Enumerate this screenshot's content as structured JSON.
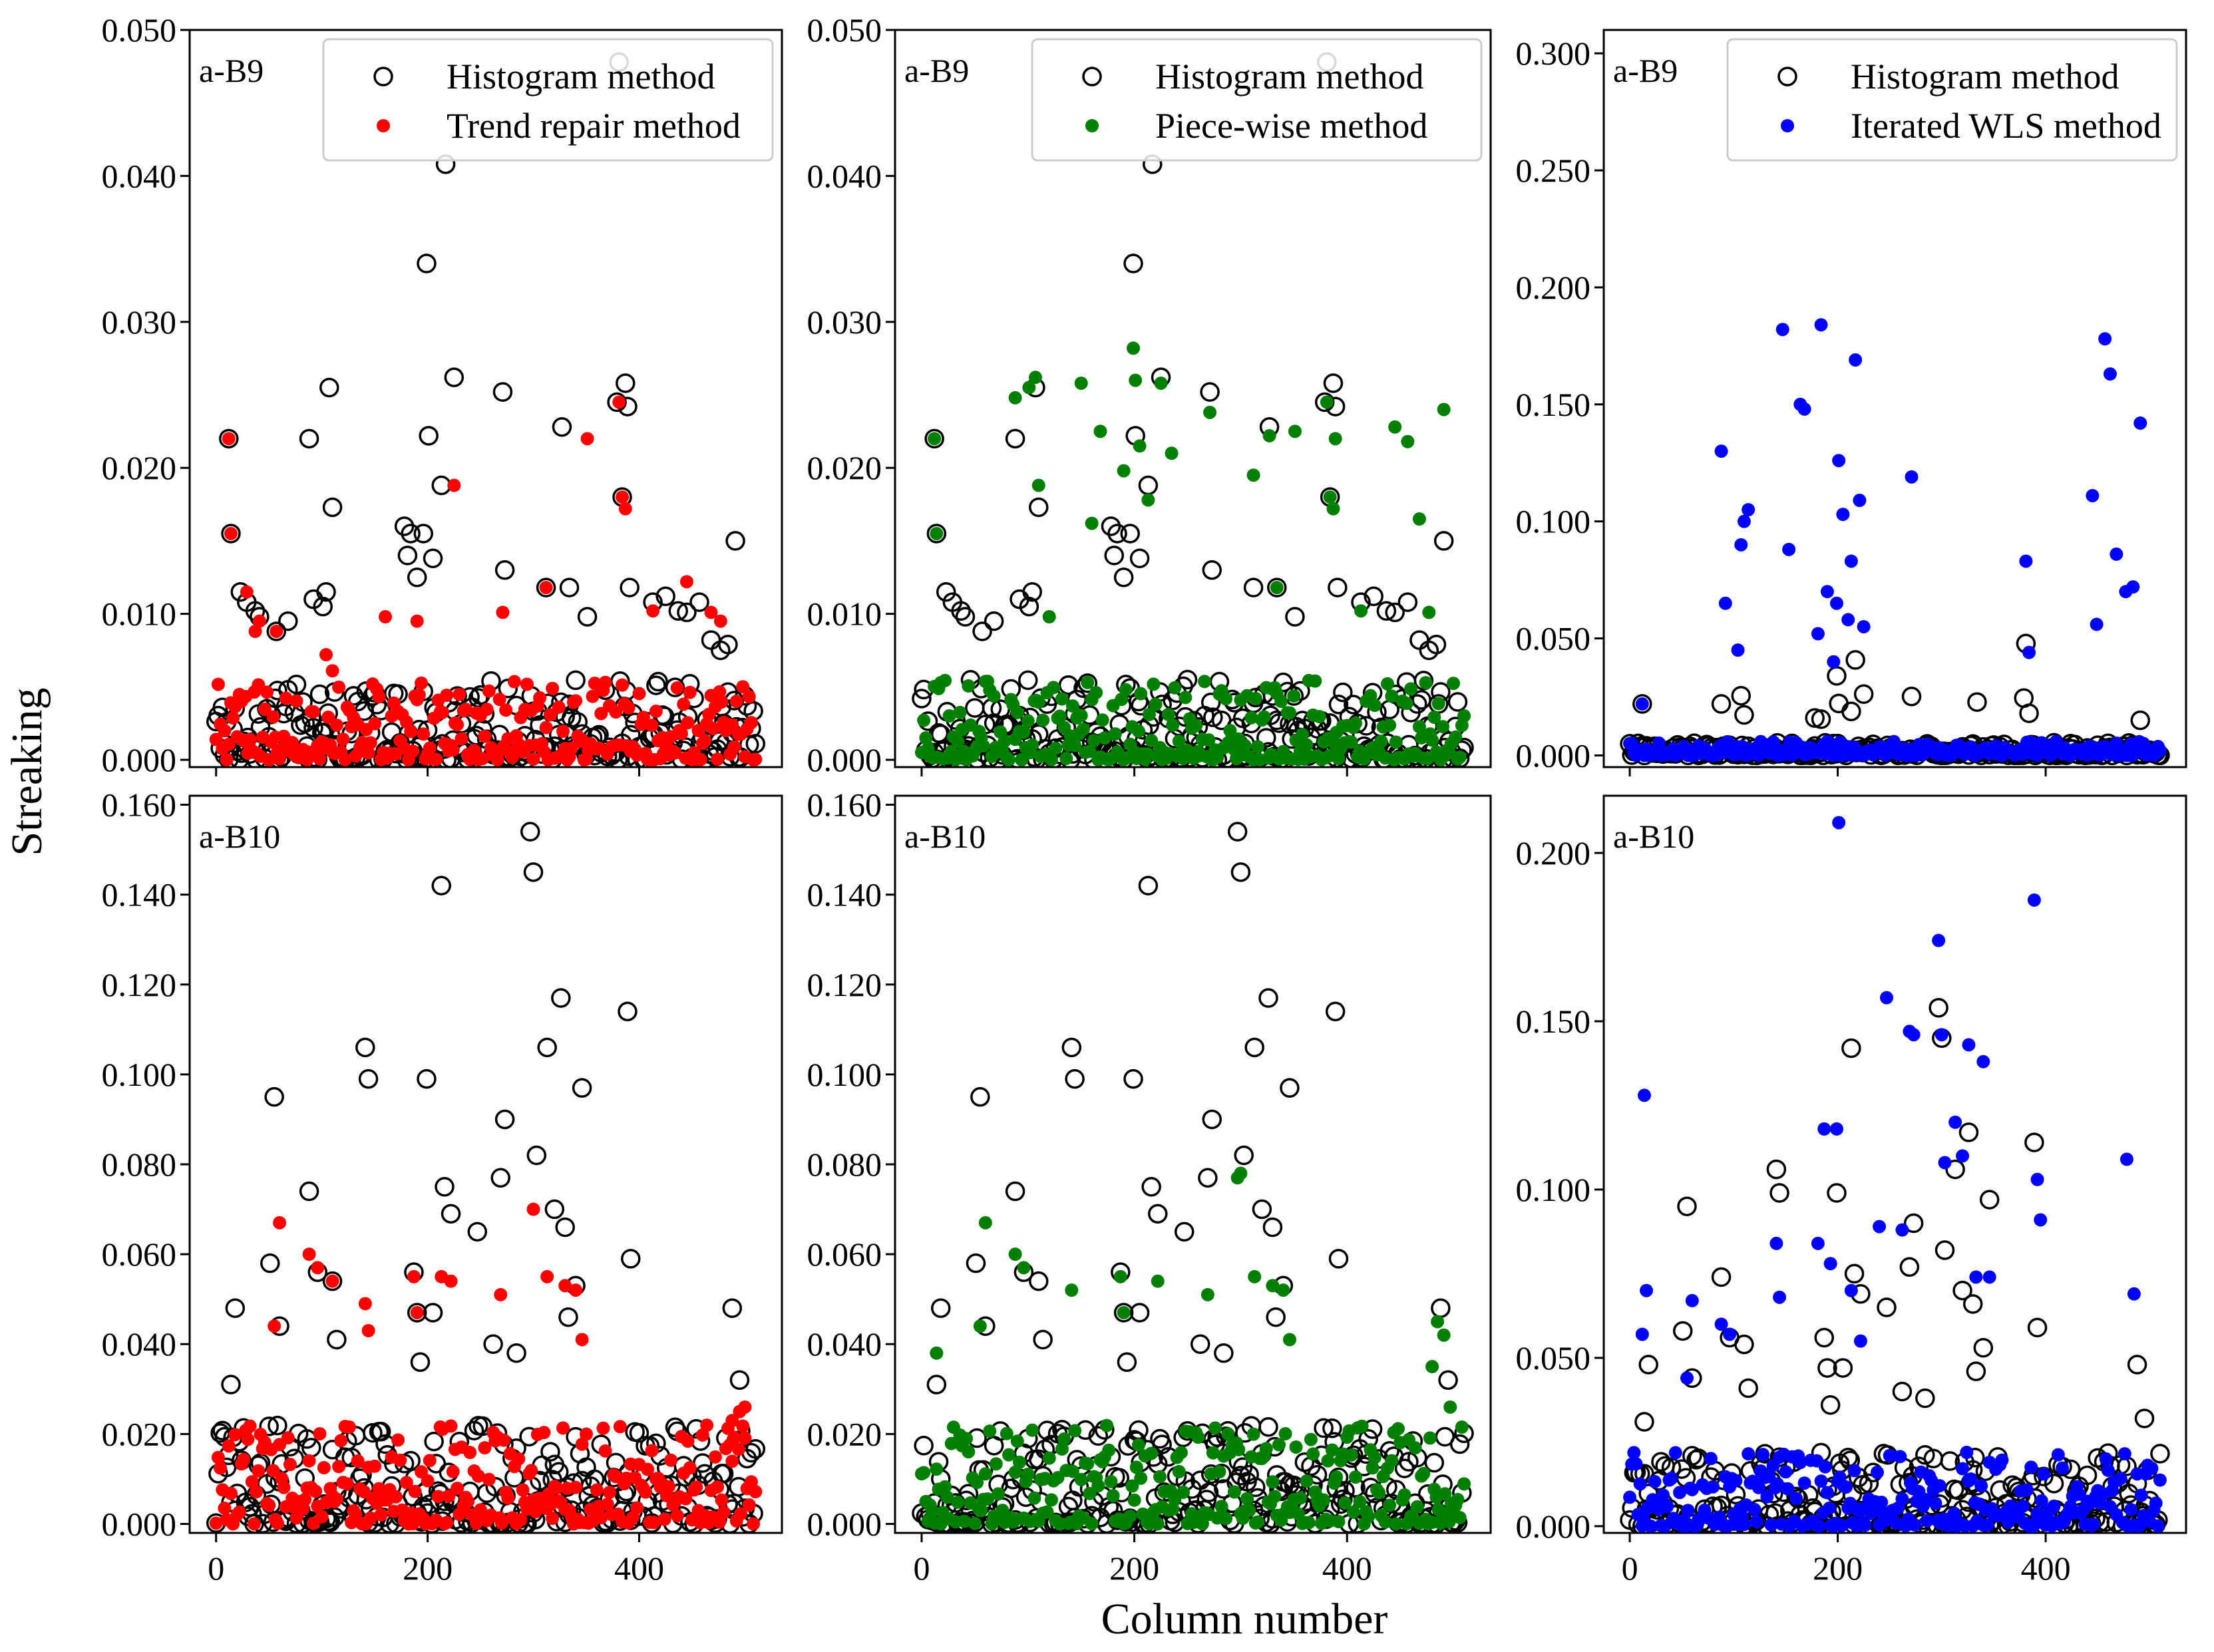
{
  "figure": {
    "ylabel": "Streaking",
    "xlabel": "Column number",
    "colors": {
      "histogram_edge": "#000000",
      "trend_repair": "#ff0000",
      "piece_wise": "#008000",
      "iterated_wls": "#0000ff"
    }
  },
  "chart_data": [
    {
      "id": "r0c0",
      "type": "scatter",
      "panel_label": "a-B9",
      "xlim": [
        -25,
        535
      ],
      "ylim": [
        -0.0005,
        0.05
      ],
      "xticks": [
        0,
        200,
        400
      ],
      "xtick_labels": [
        "",
        "",
        ""
      ],
      "yticks": [
        0,
        0.01,
        0.02,
        0.03,
        0.04,
        0.05
      ],
      "ytick_labels": [
        "0.000",
        "0.010",
        "0.020",
        "0.030",
        "0.040",
        "0.050"
      ],
      "legend": [
        "Histogram method",
        "Trend repair method"
      ],
      "legend_position": "upper-right",
      "base": {
        "name": "Histogram method",
        "scale": 0.01,
        "cluster_max": 0.0055,
        "extra_x": [
          12,
          14,
          23,
          29,
          37,
          41,
          57,
          68,
          88,
          92,
          101,
          104,
          107,
          110,
          178,
          181,
          184,
          190,
          196,
          199,
          201,
          205,
          213,
          217,
          225,
          271,
          273,
          312,
          327,
          334,
          351,
          379,
          381,
          384,
          387,
          389,
          391,
          413,
          425,
          437,
          445,
          457,
          468,
          477,
          484,
          491
        ],
        "extra_y": [
          0.022,
          0.0155,
          0.0115,
          0.0108,
          0.0102,
          0.0098,
          0.0088,
          0.0095,
          0.022,
          0.011,
          0.0105,
          0.0115,
          0.0255,
          0.0173,
          0.016,
          0.014,
          0.0155,
          0.0125,
          0.0155,
          0.034,
          0.0222,
          0.0138,
          0.0188,
          0.0408,
          0.0262,
          0.0252,
          0.013,
          0.0118,
          0.0228,
          0.0118,
          0.0098,
          0.0245,
          0.0478,
          0.018,
          0.0258,
          0.0242,
          0.0118,
          0.0108,
          0.0112,
          0.0102,
          0.0101,
          0.0108,
          0.0082,
          0.0075,
          0.0079,
          0.015
        ]
      },
      "method": {
        "name": "Trend repair method",
        "scale": 1.0,
        "cluster_max": 0.0055,
        "extra_x": [
          12,
          14,
          29,
          37,
          41,
          57,
          104,
          110,
          160,
          190,
          225,
          271,
          312,
          351,
          381,
          384,
          387,
          413,
          445,
          468,
          477
        ],
        "extra_y": [
          0.022,
          0.0155,
          0.0115,
          0.0088,
          0.0095,
          0.0088,
          0.0072,
          0.0061,
          0.0098,
          0.0095,
          0.0188,
          0.0101,
          0.0118,
          0.022,
          0.0245,
          0.018,
          0.0172,
          0.0102,
          0.0122,
          0.0101,
          0.0095
        ]
      }
    },
    {
      "id": "r0c1",
      "type": "scatter",
      "panel_label": "a-B9",
      "xlim": [
        -25,
        535
      ],
      "ylim": [
        -0.0005,
        0.05
      ],
      "xticks": [
        0,
        200,
        400
      ],
      "xtick_labels": [
        "",
        "",
        ""
      ],
      "yticks": [
        0,
        0.01,
        0.02,
        0.03,
        0.04,
        0.05
      ],
      "ytick_labels": [
        "0.000",
        "0.010",
        "0.020",
        "0.030",
        "0.040",
        "0.050"
      ],
      "legend": [
        "Histogram method",
        "Piece-wise method"
      ],
      "legend_position": "upper-right",
      "base": {
        "name": "Histogram method",
        "scale": 0.01,
        "cluster_max": 0.0055,
        "extra_x": [
          12,
          14,
          23,
          29,
          37,
          41,
          57,
          68,
          88,
          92,
          101,
          104,
          107,
          110,
          178,
          181,
          184,
          190,
          196,
          199,
          201,
          205,
          213,
          217,
          225,
          271,
          273,
          312,
          327,
          334,
          351,
          379,
          381,
          384,
          387,
          389,
          391,
          413,
          425,
          437,
          445,
          457,
          468,
          477,
          484,
          491
        ],
        "extra_y": [
          0.022,
          0.0155,
          0.0115,
          0.0108,
          0.0102,
          0.0098,
          0.0088,
          0.0095,
          0.022,
          0.011,
          0.0105,
          0.0115,
          0.0255,
          0.0173,
          0.016,
          0.014,
          0.0155,
          0.0125,
          0.0155,
          0.034,
          0.0222,
          0.0138,
          0.0188,
          0.0408,
          0.0262,
          0.0252,
          0.013,
          0.0118,
          0.0228,
          0.0118,
          0.0098,
          0.0245,
          0.0478,
          0.018,
          0.0258,
          0.0242,
          0.0118,
          0.0108,
          0.0112,
          0.0102,
          0.0101,
          0.0108,
          0.0082,
          0.0075,
          0.0079,
          0.015
        ]
      },
      "method": {
        "name": "Piece-wise method",
        "scale": 1.0,
        "cluster_max": 0.0055,
        "extra_x": [
          12,
          14,
          88,
          101,
          107,
          110,
          120,
          150,
          160,
          168,
          190,
          199,
          201,
          205,
          213,
          225,
          235,
          271,
          312,
          327,
          334,
          351,
          381,
          384,
          387,
          389,
          413,
          445,
          457,
          468,
          477,
          491
        ],
        "extra_y": [
          0.022,
          0.0155,
          0.0248,
          0.0255,
          0.0262,
          0.0188,
          0.0098,
          0.0258,
          0.0162,
          0.0225,
          0.0198,
          0.0282,
          0.026,
          0.0215,
          0.0178,
          0.0258,
          0.021,
          0.0238,
          0.0195,
          0.0222,
          0.0118,
          0.0225,
          0.0245,
          0.018,
          0.0172,
          0.022,
          0.0102,
          0.0228,
          0.0218,
          0.0165,
          0.0101,
          0.024
        ]
      }
    },
    {
      "id": "r0c2",
      "type": "scatter",
      "panel_label": "a-B9",
      "xlim": [
        -25,
        535
      ],
      "ylim": [
        -0.005,
        0.31
      ],
      "xticks": [
        0,
        200,
        400
      ],
      "xtick_labels": [
        "",
        "",
        ""
      ],
      "yticks": [
        0,
        0.05,
        0.1,
        0.15,
        0.2,
        0.25,
        0.3
      ],
      "ytick_labels": [
        "0.000",
        "0.050",
        "0.100",
        "0.150",
        "0.200",
        "0.250",
        "0.300"
      ],
      "legend": [
        "Histogram method",
        "Iterated WLS method"
      ],
      "legend_position": "upper-right",
      "base": {
        "name": "Histogram method",
        "scale": 0.01,
        "cluster_max": 0.0055,
        "extra_x": [
          12,
          88,
          107,
          110,
          178,
          184,
          199,
          201,
          213,
          217,
          225,
          271,
          334,
          379,
          381,
          384,
          491
        ],
        "extra_y": [
          0.022,
          0.022,
          0.0255,
          0.0173,
          0.016,
          0.0155,
          0.034,
          0.0222,
          0.0188,
          0.0408,
          0.0262,
          0.0252,
          0.0228,
          0.0245,
          0.0478,
          0.018,
          0.015
        ]
      },
      "method": {
        "name": "Iterated WLS method",
        "scale": 1.0,
        "cluster_max": 0.006,
        "extra_x": [
          12,
          88,
          92,
          104,
          107,
          110,
          114,
          147,
          153,
          164,
          168,
          181,
          184,
          190,
          196,
          199,
          201,
          205,
          210,
          213,
          217,
          221,
          225,
          271,
          381,
          384,
          445,
          449,
          457,
          462,
          468,
          477,
          484,
          491
        ],
        "extra_y": [
          0.022,
          0.13,
          0.065,
          0.045,
          0.09,
          0.1,
          0.105,
          0.182,
          0.088,
          0.15,
          0.148,
          0.052,
          0.184,
          0.07,
          0.04,
          0.065,
          0.126,
          0.103,
          0.058,
          0.083,
          0.169,
          0.109,
          0.055,
          0.119,
          0.083,
          0.044,
          0.111,
          0.056,
          0.178,
          0.163,
          0.086,
          0.07,
          0.072,
          0.142
        ]
      }
    },
    {
      "id": "r1c0",
      "type": "scatter",
      "panel_label": "a-B10",
      "xlim": [
        -25,
        535
      ],
      "ylim": [
        -0.002,
        0.162
      ],
      "xticks": [
        0,
        200,
        400
      ],
      "xtick_labels": [
        "0",
        "200",
        "400"
      ],
      "yticks": [
        0,
        0.02,
        0.04,
        0.06,
        0.08,
        0.1,
        0.12,
        0.14,
        0.16
      ],
      "ytick_labels": [
        "0.000",
        "0.020",
        "0.040",
        "0.060",
        "0.080",
        "0.100",
        "0.120",
        "0.140",
        "0.160"
      ],
      "legend": [],
      "legend_position": "",
      "base": {
        "name": "Histogram method",
        "scale": 0.01,
        "cluster_max": 0.022,
        "extra_x": [
          18,
          14,
          55,
          51,
          60,
          88,
          96,
          110,
          114,
          141,
          144,
          187,
          190,
          193,
          199,
          205,
          213,
          216,
          222,
          247,
          262,
          269,
          273,
          284,
          297,
          300,
          303,
          313,
          320,
          326,
          330,
          333,
          340,
          346,
          389,
          392,
          488,
          495
        ],
        "extra_y": [
          0.048,
          0.031,
          0.095,
          0.058,
          0.044,
          0.074,
          0.056,
          0.054,
          0.041,
          0.106,
          0.099,
          0.056,
          0.047,
          0.036,
          0.099,
          0.047,
          0.142,
          0.075,
          0.069,
          0.065,
          0.04,
          0.077,
          0.09,
          0.038,
          0.154,
          0.145,
          0.082,
          0.106,
          0.07,
          0.117,
          0.066,
          0.046,
          0.053,
          0.097,
          0.114,
          0.059,
          0.048,
          0.032
        ]
      },
      "method": {
        "name": "Trend repair method",
        "scale": 1.0,
        "cluster_max": 0.022,
        "extra_x": [
          55,
          60,
          88,
          96,
          110,
          141,
          144,
          187,
          190,
          213,
          222,
          269,
          300,
          313,
          330,
          340,
          346,
          488,
          495,
          500
        ],
        "extra_y": [
          0.044,
          0.067,
          0.06,
          0.057,
          0.054,
          0.049,
          0.043,
          0.055,
          0.047,
          0.055,
          0.054,
          0.051,
          0.07,
          0.055,
          0.053,
          0.052,
          0.041,
          0.023,
          0.025,
          0.026
        ]
      }
    },
    {
      "id": "r1c1",
      "type": "scatter",
      "panel_label": "a-B10",
      "xlim": [
        -25,
        535
      ],
      "ylim": [
        -0.002,
        0.162
      ],
      "xticks": [
        0,
        200,
        400
      ],
      "xtick_labels": [
        "0",
        "200",
        "400"
      ],
      "yticks": [
        0,
        0.02,
        0.04,
        0.06,
        0.08,
        0.1,
        0.12,
        0.14,
        0.16
      ],
      "ytick_labels": [
        "0.000",
        "0.020",
        "0.040",
        "0.060",
        "0.080",
        "0.100",
        "0.120",
        "0.140",
        "0.160"
      ],
      "legend": [],
      "legend_position": "",
      "base": {
        "name": "Histogram method",
        "scale": 0.01,
        "cluster_max": 0.022,
        "extra_x": [
          18,
          14,
          55,
          51,
          60,
          88,
          96,
          110,
          114,
          141,
          144,
          187,
          190,
          193,
          199,
          205,
          213,
          216,
          222,
          247,
          262,
          269,
          273,
          284,
          297,
          300,
          303,
          313,
          320,
          326,
          330,
          333,
          340,
          346,
          389,
          392,
          488,
          495
        ],
        "extra_y": [
          0.048,
          0.031,
          0.095,
          0.058,
          0.044,
          0.074,
          0.056,
          0.054,
          0.041,
          0.106,
          0.099,
          0.056,
          0.047,
          0.036,
          0.099,
          0.047,
          0.142,
          0.075,
          0.069,
          0.065,
          0.04,
          0.077,
          0.09,
          0.038,
          0.154,
          0.145,
          0.082,
          0.106,
          0.07,
          0.117,
          0.066,
          0.046,
          0.053,
          0.097,
          0.114,
          0.059,
          0.048,
          0.032
        ]
      },
      "method": {
        "name": "Piece-wise method",
        "scale": 1.0,
        "cluster_max": 0.022,
        "extra_x": [
          14,
          55,
          60,
          88,
          96,
          141,
          187,
          190,
          222,
          269,
          297,
          300,
          313,
          330,
          340,
          346,
          480,
          485,
          491,
          497
        ],
        "extra_y": [
          0.038,
          0.044,
          0.067,
          0.06,
          0.057,
          0.052,
          0.055,
          0.047,
          0.054,
          0.051,
          0.077,
          0.078,
          0.055,
          0.053,
          0.052,
          0.041,
          0.035,
          0.045,
          0.042,
          0.026
        ]
      }
    },
    {
      "id": "r1c2",
      "type": "scatter",
      "panel_label": "a-B10",
      "xlim": [
        -25,
        535
      ],
      "ylim": [
        -0.002,
        0.217
      ],
      "xticks": [
        0,
        200,
        400
      ],
      "xtick_labels": [
        "0",
        "200",
        "400"
      ],
      "yticks": [
        0,
        0.05,
        0.1,
        0.15,
        0.2
      ],
      "ytick_labels": [
        "0.000",
        "0.050",
        "0.100",
        "0.150",
        "0.200"
      ],
      "legend": [],
      "legend_position": "",
      "base": {
        "name": "Histogram method",
        "scale": 0.01,
        "cluster_max": 0.022,
        "extra_x": [
          18,
          14,
          55,
          51,
          60,
          88,
          96,
          110,
          114,
          141,
          144,
          187,
          190,
          193,
          199,
          205,
          213,
          216,
          222,
          247,
          262,
          269,
          273,
          284,
          297,
          300,
          303,
          313,
          320,
          326,
          330,
          333,
          340,
          346,
          389,
          392,
          488,
          495
        ],
        "extra_y": [
          0.048,
          0.031,
          0.095,
          0.058,
          0.044,
          0.074,
          0.056,
          0.054,
          0.041,
          0.106,
          0.099,
          0.056,
          0.047,
          0.036,
          0.099,
          0.047,
          0.142,
          0.075,
          0.069,
          0.065,
          0.04,
          0.077,
          0.09,
          0.038,
          0.154,
          0.145,
          0.082,
          0.106,
          0.07,
          0.117,
          0.066,
          0.046,
          0.053,
          0.097,
          0.114,
          0.059,
          0.048,
          0.032
        ]
      },
      "method": {
        "name": "Iterated WLS method",
        "scale": 1.0,
        "cluster_max": 0.022,
        "extra_x": [
          14,
          16,
          12,
          55,
          60,
          88,
          96,
          141,
          144,
          181,
          187,
          193,
          199,
          201,
          213,
          222,
          240,
          247,
          262,
          269,
          273,
          297,
          300,
          303,
          313,
          320,
          326,
          333,
          340,
          346,
          389,
          392,
          395,
          478,
          485
        ],
        "extra_y": [
          0.128,
          0.07,
          0.057,
          0.044,
          0.067,
          0.06,
          0.057,
          0.084,
          0.068,
          0.084,
          0.118,
          0.078,
          0.118,
          0.209,
          0.07,
          0.055,
          0.089,
          0.157,
          0.088,
          0.147,
          0.146,
          0.174,
          0.146,
          0.108,
          0.12,
          0.11,
          0.143,
          0.074,
          0.138,
          0.074,
          0.186,
          0.103,
          0.091,
          0.109,
          0.069
        ]
      }
    }
  ]
}
